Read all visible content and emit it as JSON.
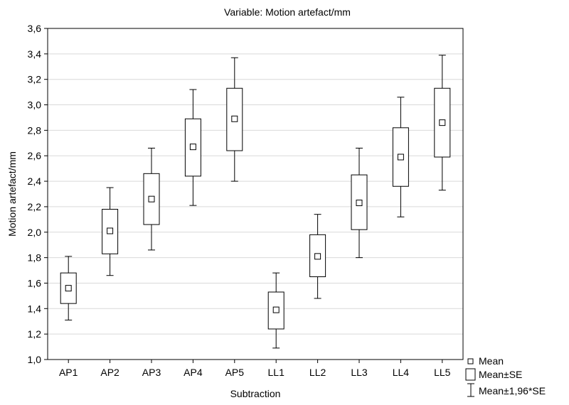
{
  "chart_data": {
    "type": "box",
    "title": "Variable: Motion artefact/mm",
    "xlabel": "Subtraction",
    "ylabel": "Motion artefact/mm",
    "ylim": [
      1.0,
      3.6
    ],
    "yticks": [
      "1,0",
      "1,2",
      "1,4",
      "1,6",
      "1,8",
      "2,0",
      "2,2",
      "2,4",
      "2,6",
      "2,8",
      "3,0",
      "3,2",
      "3,4",
      "3,6"
    ],
    "grid": true,
    "legend_position": "bottom-right",
    "categories": [
      "AP1",
      "AP2",
      "AP3",
      "AP4",
      "AP5",
      "LL1",
      "LL2",
      "LL3",
      "LL4",
      "LL5"
    ],
    "mean": [
      1.56,
      2.01,
      2.26,
      2.67,
      2.89,
      1.39,
      1.81,
      2.23,
      2.59,
      2.86
    ],
    "se_low": [
      1.44,
      1.83,
      2.06,
      2.44,
      2.64,
      1.24,
      1.65,
      2.02,
      2.36,
      2.59
    ],
    "se_high": [
      1.68,
      2.18,
      2.46,
      2.89,
      3.13,
      1.53,
      1.98,
      2.45,
      2.82,
      3.13
    ],
    "ci_low": [
      1.31,
      1.66,
      1.86,
      2.21,
      2.4,
      1.09,
      1.48,
      1.8,
      2.12,
      2.33
    ],
    "ci_high": [
      1.81,
      2.35,
      2.66,
      3.12,
      3.37,
      1.68,
      2.14,
      2.66,
      3.06,
      3.39
    ],
    "legend": [
      "Mean",
      "Mean±SE",
      "Mean±1,96*SE"
    ]
  }
}
